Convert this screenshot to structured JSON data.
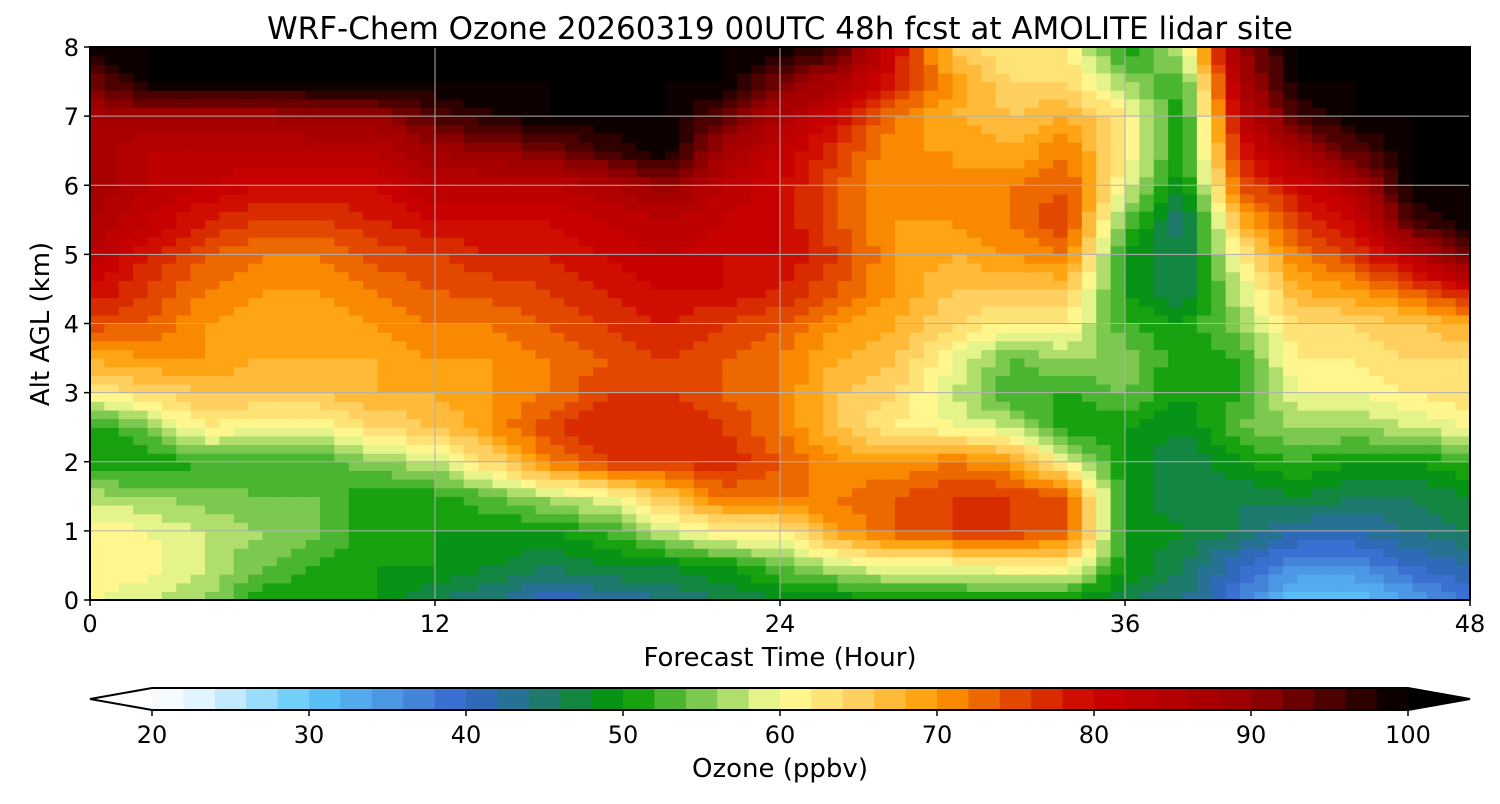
{
  "chart_data": {
    "type": "heatmap",
    "title": "WRF-Chem Ozone  20260319 00UTC 48h fcst at AMOLITE lidar site",
    "xlabel": "Forecast Time (Hour)",
    "ylabel": "Alt AGL (km)",
    "xlim": [
      0,
      48
    ],
    "ylim": [
      0,
      8
    ],
    "xticks": [
      "0",
      "12",
      "24",
      "36",
      "48"
    ],
    "yticks": [
      "0",
      "1",
      "2",
      "3",
      "4",
      "5",
      "6",
      "7",
      "8"
    ],
    "grid": true,
    "x": [
      0,
      2,
      4,
      6,
      8,
      10,
      12,
      14,
      16,
      18,
      20,
      22,
      24,
      26,
      28,
      30,
      32,
      34,
      36,
      38,
      40,
      42,
      44,
      46,
      48
    ],
    "y": [
      0,
      0.5,
      1,
      1.5,
      2,
      2.5,
      3,
      3.5,
      4,
      4.5,
      5,
      5.5,
      6,
      6.5,
      7,
      7.5,
      8
    ],
    "z_by_time": [
      [
        60,
        62,
        62,
        57,
        50,
        50,
        62,
        68,
        75,
        80,
        84,
        86,
        88,
        88,
        87,
        92,
        100
      ],
      [
        58,
        61,
        60,
        56,
        50,
        55,
        64,
        70,
        74,
        76,
        78,
        82,
        84,
        84,
        88,
        100,
        100
      ],
      [
        56,
        58,
        58,
        55,
        52,
        62,
        66,
        70,
        70,
        72,
        74,
        78,
        82,
        84,
        88,
        100,
        100
      ],
      [
        50,
        54,
        56,
        54,
        52,
        60,
        66,
        68,
        68,
        70,
        72,
        76,
        80,
        84,
        88,
        100,
        100
      ],
      [
        50,
        52,
        54,
        54,
        52,
        60,
        66,
        68,
        68,
        70,
        72,
        76,
        80,
        84,
        90,
        100,
        100
      ],
      [
        50,
        50,
        50,
        50,
        56,
        64,
        68,
        68,
        70,
        72,
        75,
        78,
        80,
        84,
        90,
        100,
        100
      ],
      [
        46,
        50,
        50,
        51,
        58,
        66,
        68,
        70,
        72,
        74,
        76,
        80,
        84,
        88,
        95,
        100,
        100
      ],
      [
        44,
        48,
        50,
        54,
        64,
        70,
        70,
        70,
        72,
        75,
        78,
        80,
        84,
        90,
        98,
        100,
        100
      ],
      [
        40,
        46,
        50,
        57,
        72,
        76,
        72,
        72,
        74,
        76,
        78,
        80,
        84,
        92,
        100,
        100,
        100
      ],
      [
        42,
        48,
        52,
        60,
        76,
        78,
        76,
        74,
        76,
        78,
        80,
        82,
        86,
        96,
        100,
        100,
        100
      ],
      [
        44,
        48,
        58,
        66,
        76,
        78,
        76,
        76,
        78,
        80,
        82,
        84,
        90,
        100,
        100,
        100,
        100
      ],
      [
        46,
        50,
        62,
        72,
        78,
        76,
        74,
        74,
        76,
        80,
        80,
        82,
        84,
        88,
        94,
        100,
        100
      ],
      [
        48,
        54,
        62,
        72,
        74,
        72,
        72,
        72,
        74,
        78,
        80,
        80,
        80,
        82,
        86,
        92,
        100
      ],
      [
        48,
        58,
        70,
        72,
        70,
        66,
        66,
        68,
        70,
        74,
        76,
        74,
        74,
        76,
        80,
        86,
        96
      ],
      [
        50,
        60,
        74,
        74,
        70,
        62,
        64,
        66,
        68,
        70,
        70,
        70,
        70,
        70,
        72,
        78,
        80
      ],
      [
        50,
        60,
        76,
        76,
        72,
        60,
        58,
        60,
        64,
        66,
        68,
        70,
        70,
        70,
        68,
        70,
        66
      ],
      [
        50,
        62,
        76,
        76,
        70,
        58,
        52,
        54,
        62,
        66,
        70,
        72,
        72,
        68,
        66,
        64,
        62
      ],
      [
        50,
        62,
        74,
        74,
        60,
        50,
        52,
        56,
        62,
        66,
        72,
        76,
        74,
        72,
        68,
        64,
        62
      ],
      [
        46,
        50,
        50,
        50,
        50,
        50,
        54,
        56,
        52,
        50,
        50,
        54,
        60,
        62,
        62,
        56,
        50
      ],
      [
        44,
        46,
        48,
        46,
        46,
        48,
        50,
        50,
        50,
        46,
        46,
        44,
        48,
        50,
        50,
        52,
        58
      ],
      [
        38,
        40,
        46,
        46,
        50,
        54,
        52,
        52,
        56,
        58,
        62,
        68,
        74,
        78,
        82,
        86,
        90
      ],
      [
        30,
        36,
        42,
        48,
        52,
        56,
        60,
        62,
        64,
        68,
        72,
        76,
        80,
        88,
        96,
        100,
        100
      ],
      [
        30,
        36,
        42,
        46,
        50,
        56,
        60,
        62,
        64,
        70,
        76,
        80,
        86,
        94,
        100,
        100,
        100
      ],
      [
        34,
        40,
        44,
        46,
        50,
        58,
        62,
        64,
        66,
        74,
        84,
        96,
        100,
        100,
        100,
        100,
        100
      ],
      [
        38,
        42,
        46,
        48,
        52,
        60,
        64,
        64,
        68,
        80,
        94,
        100,
        100,
        100,
        100,
        100,
        100
      ]
    ],
    "colorbar": {
      "label": "Ozone  (ppbv)",
      "range": [
        20,
        100
      ],
      "step": 2,
      "extend": "both",
      "ticks": [
        "20",
        "30",
        "40",
        "50",
        "60",
        "70",
        "80",
        "90",
        "100"
      ],
      "anchors": [
        {
          "v": 20,
          "c": "#ffffff"
        },
        {
          "v": 24,
          "c": "#d8f0fc"
        },
        {
          "v": 30,
          "c": "#5cc8fa"
        },
        {
          "v": 36,
          "c": "#4a8ee0"
        },
        {
          "v": 40,
          "c": "#3366cc"
        },
        {
          "v": 45,
          "c": "#1f7a6e"
        },
        {
          "v": 50,
          "c": "#009900"
        },
        {
          "v": 55,
          "c": "#7cc850"
        },
        {
          "v": 60,
          "c": "#ffff99"
        },
        {
          "v": 65,
          "c": "#ffd060"
        },
        {
          "v": 70,
          "c": "#ff9900"
        },
        {
          "v": 75,
          "c": "#e24800"
        },
        {
          "v": 80,
          "c": "#cc0000"
        },
        {
          "v": 90,
          "c": "#990000"
        },
        {
          "v": 100,
          "c": "#000000"
        }
      ]
    }
  }
}
